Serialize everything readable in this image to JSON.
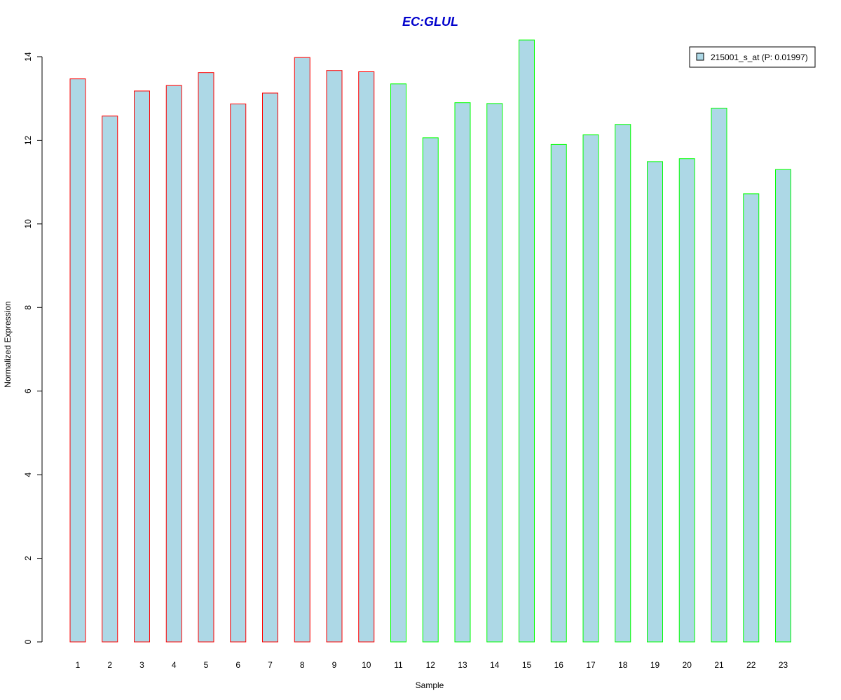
{
  "chart_data": {
    "type": "bar",
    "title": "EC:GLUL",
    "xlabel": "Sample",
    "ylabel": "Normalized Expression",
    "ylim": [
      0,
      14
    ],
    "yticks": [
      0,
      2,
      4,
      6,
      8,
      10,
      12,
      14
    ],
    "grid": false,
    "legend_position": "top-right",
    "categories": [
      "1",
      "2",
      "3",
      "4",
      "5",
      "6",
      "7",
      "8",
      "9",
      "10",
      "11",
      "12",
      "13",
      "14",
      "15",
      "16",
      "17",
      "18",
      "19",
      "20",
      "21",
      "22",
      "23"
    ],
    "series": [
      {
        "name": "215001_s_at (P: 0.01997)",
        "values": [
          13.47,
          12.58,
          13.18,
          13.31,
          13.62,
          12.87,
          13.13,
          13.98,
          13.67,
          13.64,
          13.35,
          12.06,
          12.9,
          12.88,
          14.4,
          11.9,
          12.13,
          12.38,
          11.49,
          11.56,
          12.77,
          10.72,
          11.3
        ],
        "fill_color": "#ADD8E6",
        "border_colors": [
          "#FF0000",
          "#FF0000",
          "#FF0000",
          "#FF0000",
          "#FF0000",
          "#FF0000",
          "#FF0000",
          "#FF0000",
          "#FF0000",
          "#FF0000",
          "#00FF00",
          "#00FF00",
          "#00FF00",
          "#00FF00",
          "#00FF00",
          "#00FF00",
          "#00FF00",
          "#00FF00",
          "#00FF00",
          "#00FF00",
          "#00FF00",
          "#00FF00",
          "#00FF00"
        ]
      }
    ],
    "colors": {
      "title": "#0000CC",
      "axis": "#000000",
      "legend_border": "#000000"
    }
  }
}
